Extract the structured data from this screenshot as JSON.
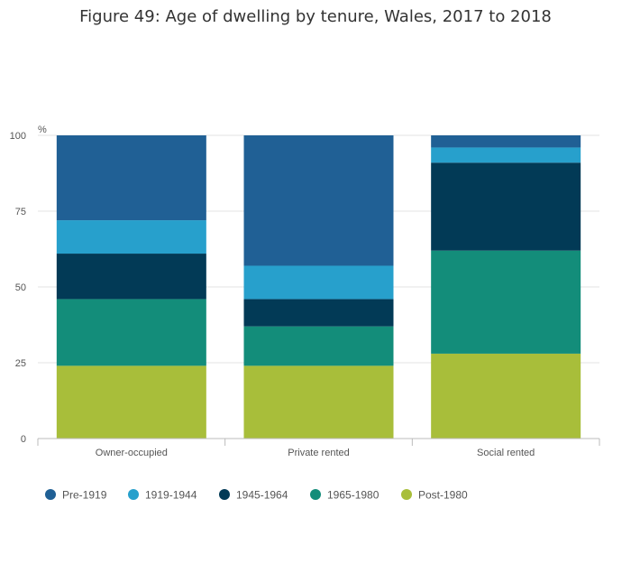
{
  "chart_data": {
    "type": "bar",
    "stacked": true,
    "title": "Figure 49: Age of dwelling by tenure, Wales, 2017 to 2018",
    "ylabel": "%",
    "xlabel": "",
    "ylim": [
      0,
      100
    ],
    "yticks": [
      0,
      25,
      50,
      75,
      100
    ],
    "categories": [
      "Owner-occupied",
      "Private rented",
      "Social rented"
    ],
    "series": [
      {
        "name": "Post-1980",
        "color": "#a8be3a",
        "values": [
          24,
          24,
          28
        ]
      },
      {
        "name": "1965-1980",
        "color": "#138d7a",
        "values": [
          22,
          13,
          34
        ]
      },
      {
        "name": "1945-1964",
        "color": "#023a56",
        "values": [
          15,
          9,
          29
        ]
      },
      {
        "name": "1919-1944",
        "color": "#27a0cc",
        "values": [
          11,
          11,
          5
        ]
      },
      {
        "name": "Pre-1919",
        "color": "#206095",
        "values": [
          28,
          43,
          4
        ]
      }
    ],
    "legend_order": [
      "Pre-1919",
      "1919-1944",
      "1945-1964",
      "1965-1980",
      "Post-1980"
    ],
    "grid": true,
    "legend_position": "bottom"
  }
}
